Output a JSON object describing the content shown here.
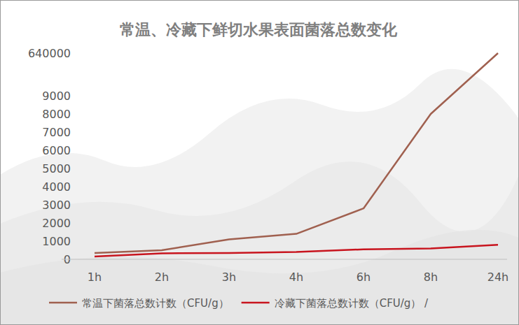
{
  "chart_data": {
    "type": "line",
    "title": "常温、冷藏下鲜切水果表面菌落总数变化",
    "categories": [
      "1h",
      "2h",
      "3h",
      "4h",
      "6h",
      "8h",
      "24h"
    ],
    "series": [
      {
        "name": "常温下菌落总数计数（CFU/g）",
        "color": "#a0604f",
        "values": [
          350,
          500,
          1100,
          1400,
          2800,
          8000,
          640000
        ]
      },
      {
        "name": "冷藏下菌落总数计数（CFU/g） /",
        "color": "#c8141e",
        "values": [
          150,
          330,
          350,
          400,
          550,
          600,
          800
        ]
      }
    ],
    "ylim": [
      0,
      640000
    ],
    "yticks": [
      0,
      1000,
      2000,
      3000,
      4000,
      5000,
      6000,
      7000,
      8000,
      9000,
      640000
    ],
    "grid": false,
    "legend": "bottom"
  }
}
